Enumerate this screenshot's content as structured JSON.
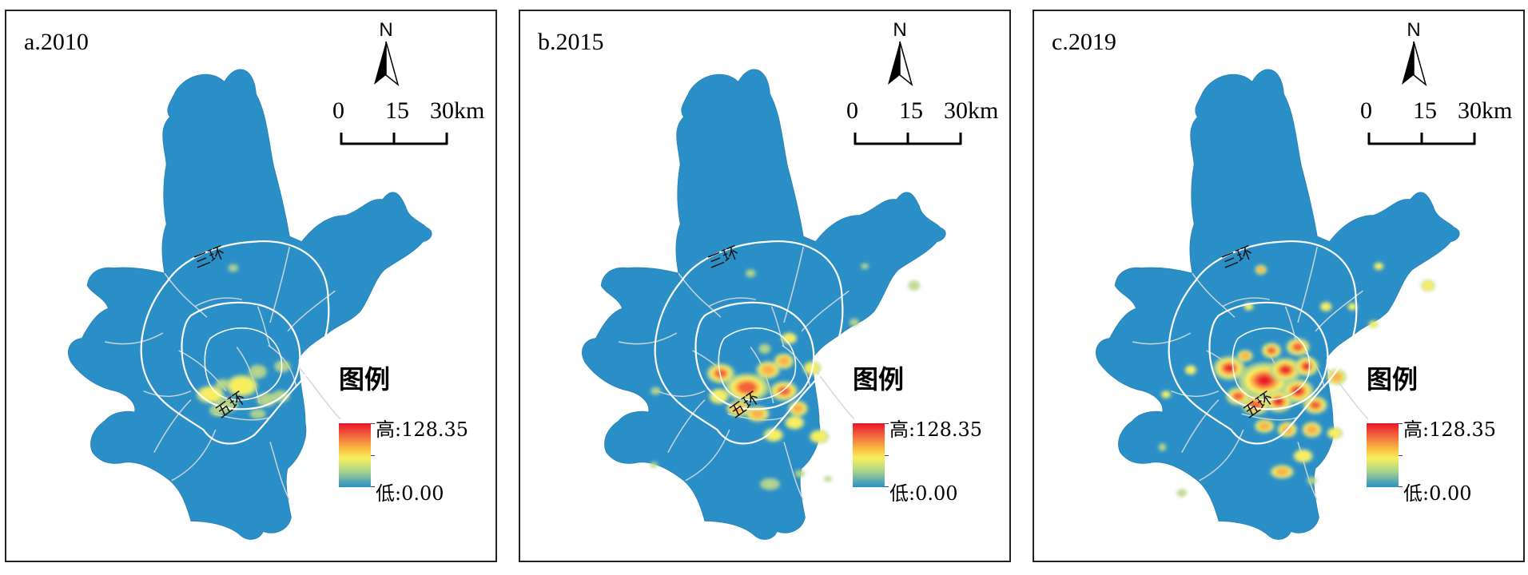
{
  "panels": [
    {
      "title": "a.2010",
      "level": 0.25,
      "hotspots": [
        [
          232,
          400,
          14,
          9,
          0.5
        ],
        [
          268,
          390,
          16,
          11,
          0.5
        ],
        [
          250,
          412,
          12,
          8,
          0.45
        ],
        [
          286,
          374,
          9,
          7,
          0.4
        ],
        [
          314,
          368,
          8,
          6,
          0.38
        ],
        [
          296,
          406,
          10,
          7,
          0.4
        ],
        [
          240,
          418,
          8,
          6,
          0.35
        ],
        [
          312,
          402,
          9,
          6,
          0.35
        ],
        [
          286,
          422,
          8,
          5,
          0.3
        ],
        [
          246,
          388,
          7,
          5,
          0.35
        ],
        [
          258,
          256,
          5,
          4,
          0.3
        ]
      ]
    },
    {
      "title": "b.2015",
      "level": 0.62,
      "hotspots": [
        [
          228,
          376,
          14,
          10,
          0.85
        ],
        [
          258,
          392,
          22,
          14,
          0.9
        ],
        [
          282,
          372,
          12,
          9,
          0.7
        ],
        [
          300,
          396,
          14,
          10,
          0.8
        ],
        [
          316,
          416,
          10,
          8,
          0.7
        ],
        [
          300,
          362,
          10,
          8,
          0.7
        ],
        [
          270,
          422,
          12,
          8,
          0.7
        ],
        [
          248,
          416,
          12,
          8,
          0.7
        ],
        [
          226,
          402,
          10,
          8,
          0.6
        ],
        [
          332,
          370,
          9,
          7,
          0.55
        ],
        [
          312,
          432,
          10,
          7,
          0.55
        ],
        [
          340,
          448,
          10,
          7,
          0.5
        ],
        [
          288,
          446,
          10,
          7,
          0.5
        ],
        [
          306,
          336,
          8,
          6,
          0.5
        ],
        [
          278,
          348,
          6,
          5,
          0.45
        ],
        [
          284,
          502,
          10,
          6,
          0.45
        ],
        [
          262,
          262,
          5,
          4,
          0.4
        ],
        [
          380,
          318,
          5,
          4,
          0.4
        ],
        [
          448,
          276,
          6,
          5,
          0.45
        ],
        [
          392,
          254,
          4,
          3,
          0.35
        ],
        [
          154,
          396,
          5,
          4,
          0.35
        ],
        [
          152,
          480,
          4,
          3,
          0.3
        ],
        [
          318,
          490,
          5,
          4,
          0.3
        ],
        [
          350,
          496,
          4,
          3,
          0.3
        ]
      ]
    },
    {
      "title": "c.2019",
      "level": 1.0,
      "hotspots": [
        [
          222,
          370,
          16,
          12,
          1.0
        ],
        [
          262,
          384,
          26,
          18,
          1.0
        ],
        [
          286,
          372,
          16,
          12,
          1.0
        ],
        [
          310,
          368,
          12,
          10,
          0.95
        ],
        [
          300,
          396,
          16,
          12,
          0.95
        ],
        [
          278,
          408,
          14,
          11,
          0.95
        ],
        [
          252,
          412,
          14,
          10,
          0.9
        ],
        [
          232,
          402,
          12,
          9,
          0.85
        ],
        [
          320,
          412,
          12,
          9,
          0.8
        ],
        [
          300,
          346,
          12,
          9,
          0.85
        ],
        [
          270,
          350,
          10,
          8,
          0.8
        ],
        [
          240,
          356,
          8,
          6,
          0.7
        ],
        [
          344,
          380,
          10,
          8,
          0.7
        ],
        [
          316,
          440,
          10,
          8,
          0.7
        ],
        [
          288,
          440,
          10,
          8,
          0.7
        ],
        [
          262,
          436,
          10,
          7,
          0.7
        ],
        [
          342,
          444,
          8,
          6,
          0.55
        ],
        [
          282,
          488,
          12,
          7,
          0.7
        ],
        [
          306,
          470,
          10,
          7,
          0.6
        ],
        [
          258,
          258,
          6,
          5,
          0.65
        ],
        [
          392,
          254,
          5,
          4,
          0.5
        ],
        [
          386,
          320,
          5,
          4,
          0.5
        ],
        [
          448,
          276,
          7,
          6,
          0.6
        ],
        [
          178,
          372,
          6,
          5,
          0.5
        ],
        [
          150,
          400,
          5,
          4,
          0.5
        ],
        [
          146,
          460,
          4,
          4,
          0.45
        ],
        [
          168,
          512,
          5,
          4,
          0.45
        ],
        [
          332,
          300,
          6,
          5,
          0.55
        ],
        [
          362,
          300,
          5,
          4,
          0.5
        ],
        [
          244,
          300,
          5,
          4,
          0.5
        ],
        [
          316,
          498,
          5,
          4,
          0.45
        ]
      ]
    }
  ],
  "north_label": "N",
  "scale_bar": {
    "ticks": [
      "0",
      "15",
      "30km"
    ]
  },
  "legend": {
    "title": "图例",
    "high": "高:128.35",
    "low": "低:0.00"
  },
  "ring_labels": {
    "third": "三环",
    "fifth": "五环"
  },
  "colors": {
    "land": "#2b8fc7",
    "road": "#cfd7de",
    "ring": "#ffffff"
  }
}
